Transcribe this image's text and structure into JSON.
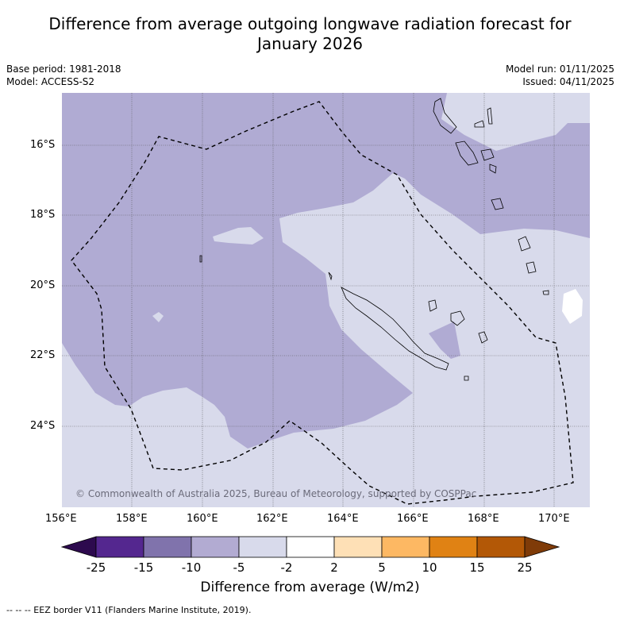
{
  "title_line1": "Difference from average outgoing longwave radiation forecast for",
  "title_line2": "January 2026",
  "base_period": "Base period: 1981-2018",
  "model": "Model: ACCESS-S2",
  "model_run": "Model run: 01/11/2025",
  "issued": "Issued: 04/11/2025",
  "lat_labels": [
    "16°S",
    "18°S",
    "20°S",
    "22°S",
    "24°S"
  ],
  "lon_labels": [
    "156°E",
    "158°E",
    "160°E",
    "162°E",
    "164°E",
    "166°E",
    "168°E",
    "170°E"
  ],
  "copyright": "© Commonwealth of Australia 2025, Bureau of Meteorology, supported by COSPPac",
  "colorbar": {
    "title": "Difference from average (W/m2)",
    "ticks": [
      "-25",
      "-15",
      "-10",
      "-5",
      "-2",
      "2",
      "5",
      "10",
      "15",
      "25"
    ],
    "colors": [
      "#2d0a4e",
      "#54278f",
      "#8073ac",
      "#b2abd2",
      "#d8daeb",
      "#ffffff",
      "#fee0b6",
      "#fdb863",
      "#e08214",
      "#b35806",
      "#7f3b08"
    ]
  },
  "footer": "--  --  -- EEZ border V11 (Flanders Marine Institute, 2019)."
}
